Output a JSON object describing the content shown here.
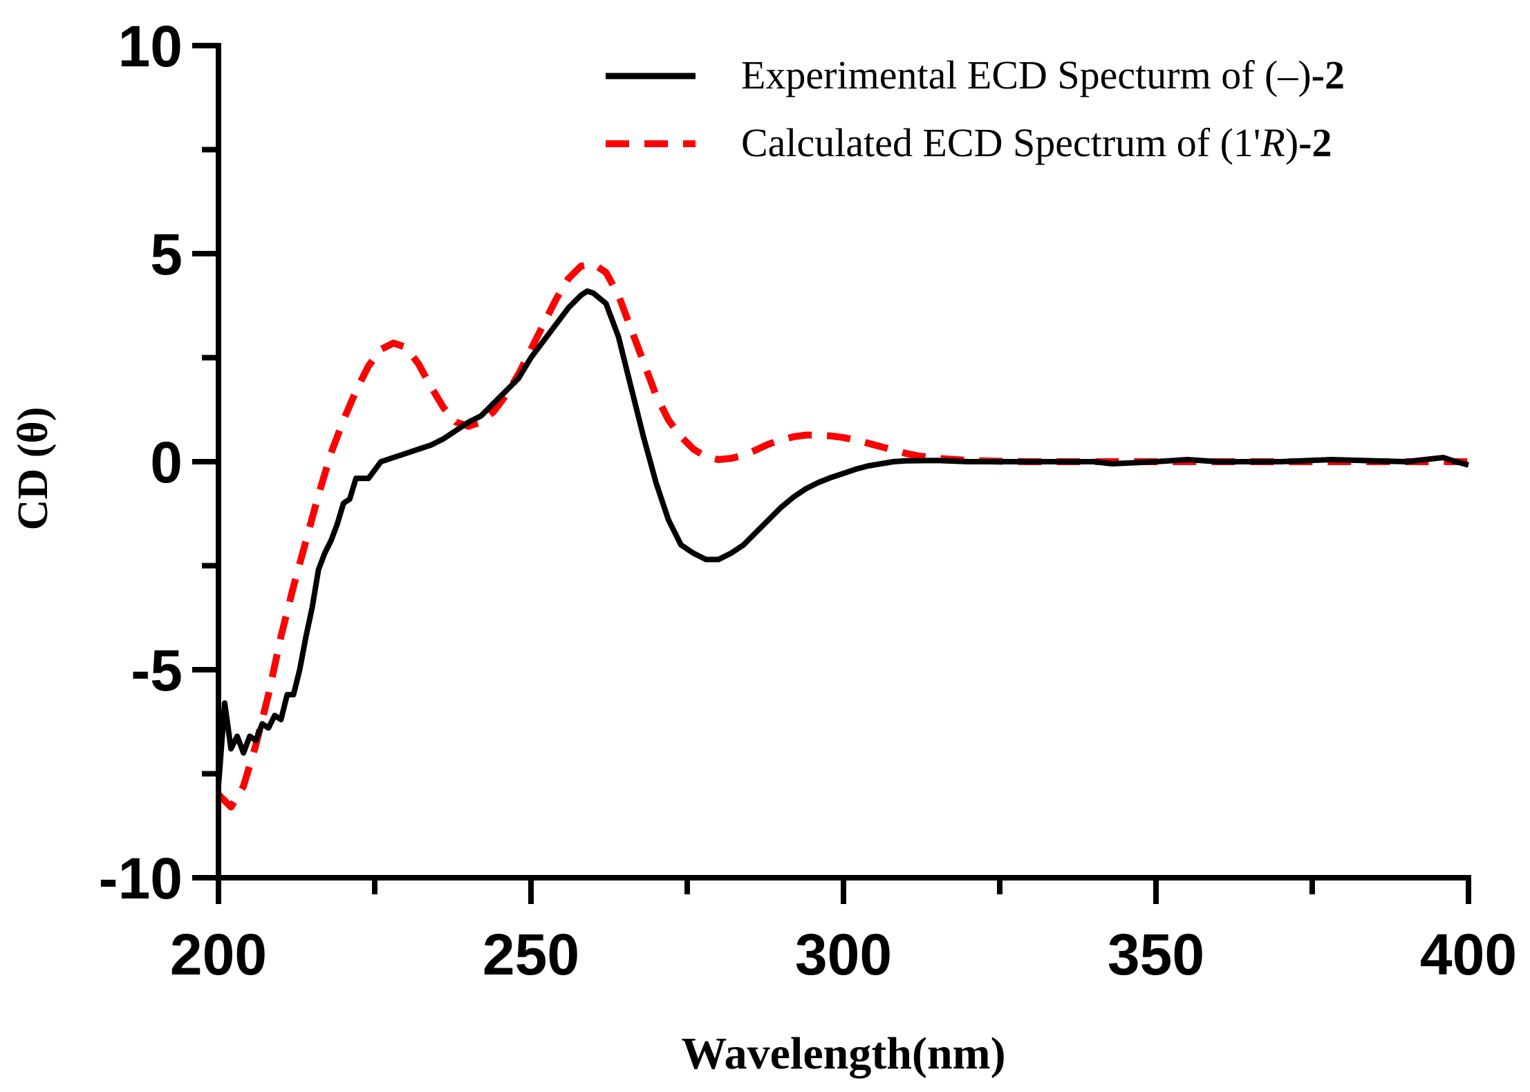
{
  "chart_data": {
    "type": "line",
    "title": "",
    "xlabel": "Wavelength(nm)",
    "ylabel": "CD (θ)",
    "xlim": [
      200,
      400
    ],
    "ylim": [
      -10,
      10
    ],
    "x_ticks": [
      200,
      250,
      300,
      350,
      400
    ],
    "x_tick_labels": [
      "200",
      "250",
      "300",
      "350",
      "400"
    ],
    "x_minor_ticks": [
      225,
      275,
      325,
      375
    ],
    "y_ticks": [
      -10,
      -5,
      0,
      5,
      10
    ],
    "y_tick_labels": [
      "-10",
      "-5",
      "0",
      "5",
      "10"
    ],
    "y_minor_ticks": [
      -7.5,
      -2.5,
      2.5,
      7.5
    ],
    "grid": false,
    "legend_position": "top-right",
    "series": [
      {
        "name": "Experimental ECD Specturm of (–)-2",
        "legend_parts": [
          {
            "text": "Experimental ECD Specturm of (–)",
            "style": "normal"
          },
          {
            "text": "-2",
            "style": "bold"
          }
        ],
        "color": "#000000",
        "dash": "solid",
        "x": [
          200,
          201,
          202,
          203,
          204,
          205,
          206,
          207,
          208,
          209,
          210,
          211,
          212,
          213,
          214,
          215,
          216,
          217,
          218,
          219,
          220,
          221,
          222,
          223,
          224,
          225,
          226,
          228,
          230,
          232,
          234,
          236,
          238,
          240,
          242,
          244,
          246,
          248,
          250,
          252,
          254,
          256,
          258,
          259,
          260,
          262,
          264,
          266,
          268,
          270,
          272,
          274,
          276,
          278,
          280,
          282,
          284,
          286,
          288,
          290,
          292,
          294,
          296,
          298,
          300,
          302,
          304,
          306,
          308,
          310,
          315,
          320,
          330,
          340,
          343,
          350,
          355,
          360,
          370,
          378,
          385,
          390,
          396,
          398,
          400
        ],
        "y": [
          -7.8,
          -5.8,
          -6.9,
          -6.6,
          -7.0,
          -6.6,
          -6.7,
          -6.3,
          -6.4,
          -6.1,
          -6.2,
          -5.6,
          -5.6,
          -5.0,
          -4.2,
          -3.5,
          -2.6,
          -2.2,
          -1.9,
          -1.5,
          -1.0,
          -0.9,
          -0.4,
          -0.4,
          -0.4,
          -0.2,
          0.0,
          0.1,
          0.2,
          0.3,
          0.4,
          0.55,
          0.75,
          0.95,
          1.1,
          1.4,
          1.7,
          2.0,
          2.5,
          2.9,
          3.3,
          3.7,
          4.0,
          4.1,
          4.05,
          3.8,
          3.0,
          1.8,
          0.6,
          -0.5,
          -1.4,
          -2.0,
          -2.2,
          -2.35,
          -2.35,
          -2.2,
          -2.0,
          -1.7,
          -1.4,
          -1.1,
          -0.85,
          -0.65,
          -0.5,
          -0.38,
          -0.28,
          -0.18,
          -0.1,
          -0.05,
          0.0,
          0.02,
          0.03,
          0.0,
          0.0,
          0.0,
          -0.05,
          0.0,
          0.05,
          0.0,
          0.0,
          0.05,
          0.02,
          0.0,
          0.1,
          0.0,
          -0.08
        ]
      },
      {
        "name": "Calculated ECD Spectrum of (1'R)-2",
        "legend_parts": [
          {
            "text": "Calculated ECD Spectrum of (1'",
            "style": "normal"
          },
          {
            "text": "R",
            "style": "italic"
          },
          {
            "text": ")",
            "style": "normal"
          },
          {
            "text": "-2",
            "style": "bold"
          }
        ],
        "color": "#ff0000",
        "dash": "dashed",
        "x": [
          200,
          202,
          204,
          206,
          208,
          210,
          212,
          214,
          216,
          218,
          220,
          222,
          224,
          226,
          228,
          230,
          232,
          234,
          236,
          238,
          240,
          242,
          244,
          246,
          248,
          250,
          252,
          254,
          256,
          258,
          260,
          262,
          264,
          266,
          268,
          270,
          272,
          274,
          276,
          278,
          280,
          282,
          284,
          286,
          288,
          290,
          292,
          294,
          296,
          298,
          300,
          302,
          304,
          306,
          308,
          310,
          312,
          315,
          320,
          325,
          330,
          340,
          350,
          360,
          380,
          400
        ],
        "y": [
          -8.0,
          -8.3,
          -7.8,
          -6.8,
          -5.6,
          -4.2,
          -3.0,
          -1.9,
          -0.8,
          0.2,
          1.0,
          1.7,
          2.3,
          2.7,
          2.85,
          2.75,
          2.35,
          1.8,
          1.3,
          0.95,
          0.85,
          0.95,
          1.2,
          1.6,
          2.1,
          2.7,
          3.3,
          3.9,
          4.4,
          4.7,
          4.75,
          4.55,
          4.0,
          3.2,
          2.4,
          1.6,
          1.0,
          0.6,
          0.3,
          0.12,
          0.05,
          0.08,
          0.15,
          0.28,
          0.42,
          0.52,
          0.6,
          0.64,
          0.64,
          0.62,
          0.58,
          0.52,
          0.44,
          0.36,
          0.28,
          0.2,
          0.14,
          0.08,
          0.03,
          0.01,
          0.0,
          0.0,
          0.0,
          0.0,
          0.0,
          0.0
        ]
      }
    ]
  }
}
